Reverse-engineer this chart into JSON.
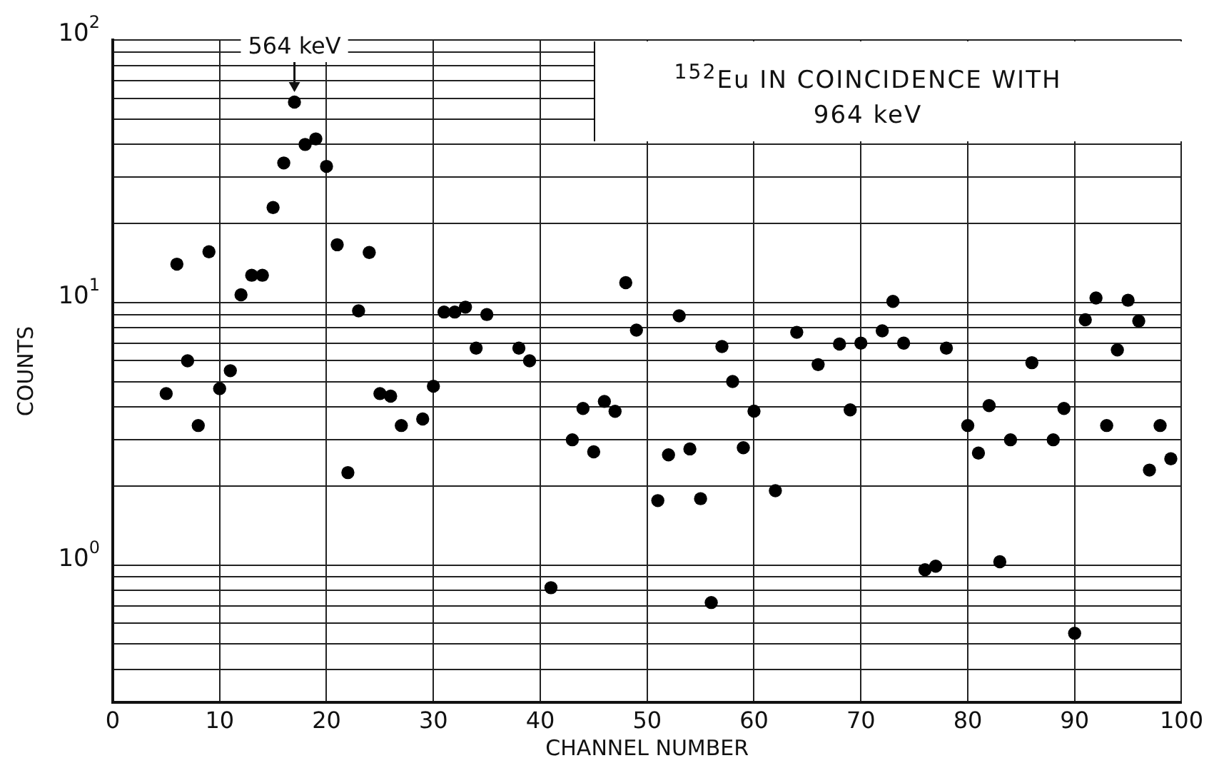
{
  "chart_data": {
    "type": "scatter",
    "title": "$^{152}$Eu IN COINCIDENCE WITH 964 keV",
    "xlabel": "CHANNEL NUMBER",
    "ylabel": "COUNTS",
    "x": [
      5,
      6,
      7,
      8,
      9,
      10,
      11,
      12,
      13,
      14,
      15,
      16,
      17,
      18,
      19,
      20,
      21,
      22,
      23,
      24,
      25,
      26,
      27,
      29,
      30,
      31,
      32,
      33,
      34,
      35,
      38,
      39,
      41,
      43,
      44,
      45,
      46,
      47,
      48,
      49,
      51,
      52,
      53,
      54,
      55,
      56,
      57,
      58,
      59,
      60,
      62,
      64,
      66,
      68,
      69,
      70,
      72,
      73,
      74,
      76,
      77,
      78,
      80,
      81,
      82,
      83,
      84,
      86,
      88,
      89,
      90,
      91,
      92,
      93,
      94,
      95,
      96,
      97,
      98,
      99
    ],
    "series": [
      {
        "color": "#000000",
        "values": [
          4.5,
          14,
          6.0,
          3.4,
          15.6,
          4.7,
          5.5,
          10.7,
          12.7,
          12.7,
          23,
          34,
          58,
          40,
          42,
          33,
          16.6,
          2.25,
          9.3,
          15.5,
          4.5,
          4.4,
          3.4,
          3.6,
          4.8,
          9.2,
          9.2,
          9.6,
          6.7,
          9.0,
          6.7,
          6.0,
          0.82,
          3.0,
          3.95,
          2.7,
          4.2,
          3.85,
          11.9,
          7.85,
          1.76,
          2.63,
          8.9,
          2.77,
          1.79,
          0.72,
          6.8,
          5.0,
          2.8,
          3.86,
          1.92,
          7.7,
          5.8,
          6.95,
          3.9,
          7.0,
          7.8,
          10.1,
          7.0,
          0.96,
          0.99,
          6.7,
          3.4,
          2.67,
          4.05,
          1.03,
          3.0,
          5.9,
          3.0,
          3.95,
          0.55,
          8.6,
          10.4,
          3.4,
          6.6,
          10.2,
          8.5,
          2.3,
          3.4,
          2.54
        ]
      }
    ],
    "xlim": [
      0,
      100
    ],
    "xticks": [
      0,
      10,
      20,
      30,
      40,
      50,
      60,
      70,
      80,
      90,
      100
    ],
    "ylim": [
      0.3,
      100
    ],
    "yticks": [
      {
        "value": 0.4,
        "label": null
      },
      {
        "value": 0.5,
        "label": null
      },
      {
        "value": 0.6,
        "label": null
      },
      {
        "value": 0.7,
        "label": null
      },
      {
        "value": 0.8,
        "label": null
      },
      {
        "value": 0.9,
        "label": null
      },
      {
        "value": 1,
        "label": "10$^{0}$"
      },
      {
        "value": 2,
        "label": null
      },
      {
        "value": 3,
        "label": null
      },
      {
        "value": 4,
        "label": null
      },
      {
        "value": 5,
        "label": null
      },
      {
        "value": 6,
        "label": null
      },
      {
        "value": 7,
        "label": null
      },
      {
        "value": 8,
        "label": null
      },
      {
        "value": 9,
        "label": null
      },
      {
        "value": 10,
        "label": "10$^{1}$"
      },
      {
        "value": 20,
        "label": null
      },
      {
        "value": 30,
        "label": null
      },
      {
        "value": 40,
        "label": null
      },
      {
        "value": 50,
        "label": null
      },
      {
        "value": 60,
        "label": null
      },
      {
        "value": 70,
        "label": null
      },
      {
        "value": 80,
        "label": null
      },
      {
        "value": 90,
        "label": null
      },
      {
        "value": 100,
        "label": "10$^{2}$"
      }
    ],
    "log": "y",
    "grid": true,
    "legend": false,
    "marker": "circle",
    "annotations": [
      {
        "text": "564 keV",
        "x": 17,
        "y": 58
      }
    ]
  }
}
